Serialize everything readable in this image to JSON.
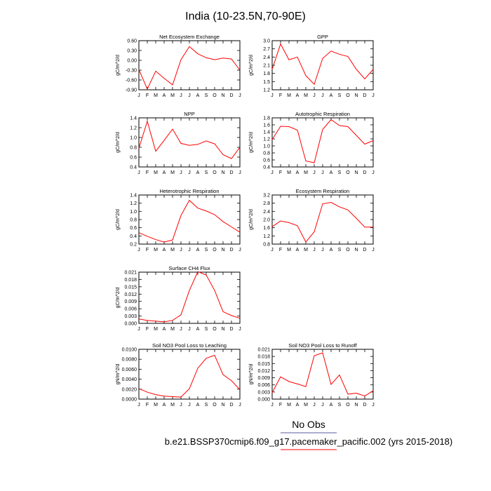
{
  "figure": {
    "title": "India (10-23.5N,70-90E)",
    "legend_label": "No Obs",
    "case_label": "b.e21.BSSP370cmip6.f09_g17.pacemaker_pacific.002 (yrs 2015-2018)",
    "line_color": "#ff0000",
    "legend_top_line_color": "#5a5aa0",
    "legend_bottom_line_color": "#ff0000"
  },
  "chart_data": [
    {
      "type": "line",
      "title": "Net Ecosystem Exchange",
      "ylabel": "gC/m^2/d",
      "categories": [
        "J",
        "F",
        "M",
        "A",
        "M",
        "J",
        "J",
        "A",
        "S",
        "O",
        "N",
        "D",
        "J"
      ],
      "ylim": [
        -0.9,
        0.6
      ],
      "yticks": [
        "-0.90",
        "-0.60",
        "-0.30",
        "0.00",
        "0.30",
        "0.60"
      ],
      "grid": false,
      "series": [
        {
          "values": [
            -0.28,
            -0.88,
            -0.33,
            -0.55,
            -0.75,
            0.02,
            0.42,
            0.2,
            0.08,
            0.02,
            0.07,
            0.04,
            -0.3
          ]
        }
      ]
    },
    {
      "type": "line",
      "title": "GPP",
      "ylabel": "gC/m^2/d",
      "categories": [
        "J",
        "F",
        "M",
        "A",
        "M",
        "J",
        "J",
        "A",
        "S",
        "O",
        "N",
        "D",
        "J"
      ],
      "ylim": [
        1.2,
        3.0
      ],
      "yticks": [
        "1.2",
        "1.5",
        "1.8",
        "2.1",
        "2.4",
        "2.7",
        "3.0"
      ],
      "grid": false,
      "series": [
        {
          "values": [
            1.95,
            2.88,
            2.3,
            2.4,
            1.72,
            1.4,
            2.35,
            2.62,
            2.5,
            2.42,
            1.95,
            1.6,
            1.95
          ]
        }
      ]
    },
    {
      "type": "line",
      "title": "NPP",
      "ylabel": "gC/m^2/d",
      "categories": [
        "J",
        "F",
        "M",
        "A",
        "M",
        "J",
        "J",
        "A",
        "S",
        "O",
        "N",
        "D",
        "J"
      ],
      "ylim": [
        0.4,
        1.4
      ],
      "yticks": [
        "0.4",
        "0.6",
        "0.8",
        "1.0",
        "1.2",
        "1.4"
      ],
      "grid": false,
      "series": [
        {
          "values": [
            0.78,
            1.33,
            0.72,
            0.94,
            1.17,
            0.88,
            0.84,
            0.86,
            0.93,
            0.87,
            0.65,
            0.57,
            0.8
          ]
        }
      ]
    },
    {
      "type": "line",
      "title": "Autotrophic Respiration",
      "ylabel": "gC/m^2/d",
      "categories": [
        "J",
        "F",
        "M",
        "A",
        "M",
        "J",
        "J",
        "A",
        "S",
        "O",
        "N",
        "D",
        "J"
      ],
      "ylim": [
        0.4,
        1.8
      ],
      "yticks": [
        "0.4",
        "0.6",
        "0.8",
        "1.0",
        "1.2",
        "1.4",
        "1.6",
        "1.8"
      ],
      "grid": false,
      "series": [
        {
          "values": [
            1.18,
            1.56,
            1.55,
            1.45,
            0.57,
            0.52,
            1.47,
            1.75,
            1.58,
            1.55,
            1.3,
            1.05,
            1.15
          ]
        }
      ]
    },
    {
      "type": "line",
      "title": "Heterotrophic Respiration",
      "ylabel": "gC/m^2/d",
      "categories": [
        "J",
        "F",
        "M",
        "A",
        "M",
        "J",
        "J",
        "A",
        "S",
        "O",
        "N",
        "D",
        "J"
      ],
      "ylim": [
        0.2,
        1.4
      ],
      "yticks": [
        "0.2",
        "0.4",
        "0.6",
        "0.8",
        "1.0",
        "1.2",
        "1.4"
      ],
      "grid": false,
      "series": [
        {
          "values": [
            0.48,
            0.39,
            0.31,
            0.25,
            0.3,
            0.9,
            1.27,
            1.08,
            1.01,
            0.92,
            0.75,
            0.62,
            0.49
          ]
        }
      ]
    },
    {
      "type": "line",
      "title": "Ecosystem Respiration",
      "ylabel": "gC/m^2/d",
      "categories": [
        "J",
        "F",
        "M",
        "A",
        "M",
        "J",
        "J",
        "A",
        "S",
        "O",
        "N",
        "D",
        "J"
      ],
      "ylim": [
        0.8,
        3.2
      ],
      "yticks": [
        "0.8",
        "1.2",
        "1.6",
        "2.0",
        "2.4",
        "2.8",
        "3.2"
      ],
      "grid": false,
      "series": [
        {
          "values": [
            1.65,
            1.93,
            1.85,
            1.7,
            0.9,
            1.4,
            2.77,
            2.84,
            2.62,
            2.47,
            2.06,
            1.63,
            1.63
          ]
        }
      ]
    },
    {
      "type": "line",
      "title": "Surface CH4 Flux",
      "ylabel": "gC/m^2/d",
      "categories": [
        "J",
        "F",
        "M",
        "A",
        "M",
        "J",
        "J",
        "A",
        "S",
        "O",
        "N",
        "D",
        "J"
      ],
      "ylim": [
        0.0,
        0.021
      ],
      "yticks": [
        "0.000",
        "0.003",
        "0.006",
        "0.009",
        "0.012",
        "0.015",
        "0.018",
        "0.021"
      ],
      "grid": false,
      "series": [
        {
          "values": [
            0.0018,
            0.0012,
            0.0009,
            0.0006,
            0.0012,
            0.0035,
            0.0135,
            0.0212,
            0.0198,
            0.0135,
            0.0048,
            0.0032,
            0.0021
          ]
        }
      ]
    },
    {
      "type": "line",
      "title": "Soil NO3 Pool Loss to Leaching",
      "ylabel": "gN/m^2/d",
      "categories": [
        "J",
        "F",
        "M",
        "A",
        "M",
        "J",
        "J",
        "A",
        "S",
        "O",
        "N",
        "D",
        "J"
      ],
      "ylim": [
        0.0,
        0.01
      ],
      "yticks": [
        "0.0000",
        "0.0020",
        "0.0040",
        "0.0060",
        "0.0080",
        "0.0100"
      ],
      "grid": false,
      "series": [
        {
          "values": [
            0.0021,
            0.0014,
            0.0009,
            0.0006,
            0.0005,
            0.0004,
            0.0021,
            0.0062,
            0.0082,
            0.0088,
            0.0049,
            0.0037,
            0.0019
          ]
        }
      ]
    },
    {
      "type": "line",
      "title": "Soil NO3 Pool Loss to Runoff",
      "ylabel": "gN/m^2/d",
      "categories": [
        "J",
        "F",
        "M",
        "A",
        "M",
        "J",
        "J",
        "A",
        "S",
        "O",
        "N",
        "D",
        "J"
      ],
      "ylim": [
        0.0,
        0.021
      ],
      "yticks": [
        "0.000",
        "0.003",
        "0.006",
        "0.009",
        "0.012",
        "0.015",
        "0.018",
        "0.021"
      ],
      "grid": false,
      "series": [
        {
          "values": [
            0.0027,
            0.0094,
            0.0074,
            0.0064,
            0.0053,
            0.0183,
            0.0195,
            0.0062,
            0.0102,
            0.0021,
            0.0025,
            0.0013,
            0.0035
          ]
        }
      ]
    }
  ]
}
